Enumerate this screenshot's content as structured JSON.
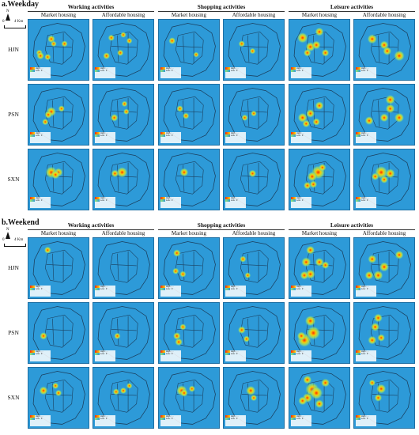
{
  "sections": [
    {
      "label": "a.Weekday"
    },
    {
      "label": "b.Weekend"
    }
  ],
  "compass": {
    "north": "N",
    "scale_start": "0",
    "scale_end": "4 Km"
  },
  "categories": [
    "Working activities",
    "Shopping activities",
    "Leisure activities"
  ],
  "subtypes": [
    "Market housing",
    "Affordable housing"
  ],
  "rows": [
    "HJN",
    "PSN",
    "SXN"
  ],
  "legend": {
    "high": "High : ...",
    "low": "Low : 0"
  },
  "colors": {
    "map_background": "#2d9ad8",
    "hot": "#ff2a00",
    "warm": "#ffd400",
    "cool": "#9be86a",
    "boundary": "#1b3f5e"
  },
  "hotspots": {
    "weekday": [
      [
        [
          [
            [
              0.38,
              0.32,
              0.4
            ],
            [
              0.18,
              0.55,
              0.3
            ],
            [
              0.2,
              0.6,
              0.4
            ],
            [
              0.42,
              0.4,
              0.25
            ],
            [
              0.6,
              0.4,
              0.3
            ],
            [
              0.32,
              0.62,
              0.3
            ]
          ],
          [
            [
              0.3,
              0.3,
              0.3
            ],
            [
              0.22,
              0.6,
              0.35
            ],
            [
              0.45,
              0.55,
              0.3
            ],
            [
              0.5,
              0.25,
              0.25
            ],
            [
              0.6,
              0.35,
              0.25
            ]
          ]
        ],
        [
          [
            [
              0.22,
              0.35,
              0.35
            ],
            [
              0.62,
              0.58,
              0.2
            ]
          ],
          [
            [
              0.3,
              0.4,
              0.3
            ],
            [
              0.48,
              0.52,
              0.25
            ]
          ]
        ],
        [
          [
            [
              0.22,
              0.3,
              0.7
            ],
            [
              0.35,
              0.45,
              0.6
            ],
            [
              0.5,
              0.2,
              0.5
            ],
            [
              0.45,
              0.42,
              0.5
            ],
            [
              0.6,
              0.55,
              0.4
            ],
            [
              0.3,
              0.55,
              0.4
            ]
          ],
          [
            [
              0.3,
              0.32,
              0.6
            ],
            [
              0.5,
              0.42,
              0.5
            ],
            [
              0.75,
              0.6,
              0.7
            ],
            [
              0.55,
              0.52,
              0.5
            ]
          ]
        ]
      ],
      [
        [
          [
            [
              0.38,
              0.45,
              0.6
            ],
            [
              0.33,
              0.5,
              0.4
            ],
            [
              0.55,
              0.4,
              0.3
            ],
            [
              0.28,
              0.62,
              0.3
            ]
          ],
          [
            [
              0.35,
              0.55,
              0.4
            ],
            [
              0.55,
              0.45,
              0.25
            ],
            [
              0.52,
              0.32,
              0.25
            ]
          ]
        ],
        [
          [
            [
              0.35,
              0.4,
              0.3
            ],
            [
              0.45,
              0.52,
              0.3
            ]
          ],
          [
            [
              0.35,
              0.55,
              0.3
            ],
            [
              0.5,
              0.48,
              0.25
            ]
          ]
        ],
        [
          [
            [
              0.22,
              0.55,
              0.6
            ],
            [
              0.35,
              0.48,
              0.5
            ],
            [
              0.5,
              0.35,
              0.5
            ],
            [
              0.45,
              0.62,
              0.4
            ],
            [
              0.28,
              0.65,
              0.4
            ]
          ],
          [
            [
              0.6,
              0.25,
              0.6
            ],
            [
              0.6,
              0.4,
              0.55
            ],
            [
              0.5,
              0.55,
              0.5
            ],
            [
              0.25,
              0.6,
              0.5
            ],
            [
              0.75,
              0.55,
              0.6
            ]
          ]
        ]
      ],
      [
        [
          [
            [
              0.38,
              0.38,
              0.8
            ],
            [
              0.5,
              0.38,
              0.5
            ],
            [
              0.45,
              0.42,
              0.5
            ]
          ],
          [
            [
              0.48,
              0.38,
              0.7
            ],
            [
              0.36,
              0.4,
              0.4
            ]
          ]
        ],
        [
          [
            [
              0.42,
              0.38,
              0.5
            ]
          ],
          [
            [
              0.48,
              0.4,
              0.4
            ]
          ]
        ],
        [
          [
            [
              0.48,
              0.38,
              1.0
            ],
            [
              0.38,
              0.45,
              0.6
            ],
            [
              0.3,
              0.6,
              0.4
            ],
            [
              0.4,
              0.58,
              0.4
            ],
            [
              0.55,
              0.3,
              0.4
            ]
          ],
          [
            [
              0.45,
              0.38,
              0.9
            ],
            [
              0.6,
              0.4,
              0.6
            ],
            [
              0.35,
              0.45,
              0.4
            ],
            [
              0.5,
              0.5,
              0.4
            ]
          ]
        ]
      ]
    ],
    "weekend": [
      [
        [
          [
            [
              0.32,
              0.2,
              0.35
            ]
          ],
          []
        ],
        [
          [
            [
              0.3,
              0.25,
              0.4
            ],
            [
              0.28,
              0.55,
              0.3
            ],
            [
              0.4,
              0.6,
              0.3
            ]
          ],
          [
            [
              0.32,
              0.35,
              0.3
            ],
            [
              0.4,
              0.62,
              0.25
            ]
          ]
        ],
        [
          [
            [
              0.35,
              0.2,
              0.5
            ],
            [
              0.28,
              0.4,
              0.6
            ],
            [
              0.35,
              0.6,
              0.6
            ],
            [
              0.25,
              0.62,
              0.5
            ],
            [
              0.5,
              0.4,
              0.5
            ],
            [
              0.6,
              0.45,
              0.4
            ]
          ],
          [
            [
              0.3,
              0.35,
              0.5
            ],
            [
              0.5,
              0.48,
              0.6
            ],
            [
              0.4,
              0.62,
              0.6
            ],
            [
              0.25,
              0.62,
              0.5
            ],
            [
              0.75,
              0.28,
              0.5
            ]
          ]
        ]
      ],
      [
        [
          [
            [
              0.25,
              0.55,
              0.4
            ]
          ],
          [
            [
              0.4,
              0.55,
              0.3
            ]
          ]
        ],
        [
          [
            [
              0.3,
              0.55,
              0.4
            ],
            [
              0.33,
              0.65,
              0.4
            ],
            [
              0.4,
              0.4,
              0.3
            ]
          ],
          [
            [
              0.3,
              0.45,
              0.4
            ],
            [
              0.38,
              0.6,
              0.3
            ]
          ]
        ],
        [
          [
            [
              0.25,
              0.62,
              1.0
            ],
            [
              0.4,
              0.5,
              1.0
            ],
            [
              0.35,
              0.3,
              0.7
            ],
            [
              0.2,
              0.55,
              0.5
            ]
          ],
          [
            [
              0.4,
              0.25,
              0.5
            ],
            [
              0.35,
              0.4,
              0.5
            ],
            [
              0.3,
              0.62,
              0.5
            ],
            [
              0.45,
              0.58,
              0.4
            ]
          ]
        ]
      ],
      [
        [
          [
            [
              0.25,
              0.38,
              0.5
            ],
            [
              0.45,
              0.3,
              0.3
            ],
            [
              0.5,
              0.42,
              0.3
            ]
          ],
          [
            [
              0.38,
              0.4,
              0.3
            ],
            [
              0.5,
              0.38,
              0.3
            ],
            [
              0.6,
              0.3,
              0.25
            ]
          ]
        ],
        [
          [
            [
              0.38,
              0.38,
              0.7
            ],
            [
              0.42,
              0.42,
              0.4
            ],
            [
              0.55,
              0.35,
              0.3
            ]
          ],
          [
            [
              0.45,
              0.38,
              0.6
            ],
            [
              0.5,
              0.5,
              0.3
            ]
          ]
        ],
        [
          [
            [
              0.38,
              0.36,
              1.0
            ],
            [
              0.45,
              0.42,
              0.9
            ],
            [
              0.3,
              0.5,
              0.6
            ],
            [
              0.3,
              0.2,
              0.5
            ],
            [
              0.5,
              0.6,
              0.5
            ],
            [
              0.6,
              0.25,
              0.5
            ],
            [
              0.22,
              0.55,
              0.5
            ]
          ],
          [
            [
              0.45,
              0.35,
              0.6
            ],
            [
              0.4,
              0.5,
              0.4
            ],
            [
              0.3,
              0.25,
              0.3
            ]
          ]
        ]
      ]
    ]
  }
}
